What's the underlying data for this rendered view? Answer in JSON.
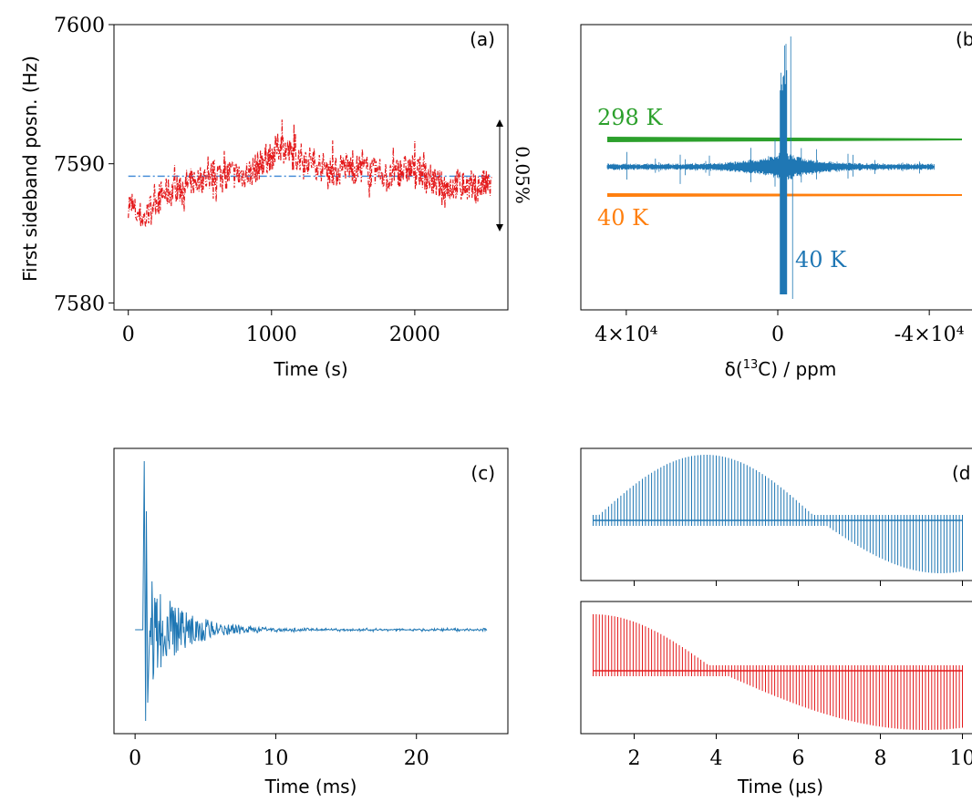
{
  "chart_data": [
    {
      "panel": "(a)",
      "type": "line",
      "ylabel": "First sideband posn. (Hz)",
      "xlabel": "Time (s)",
      "xlim": [
        -100,
        2650
      ],
      "ylim": [
        7579.5,
        7600
      ],
      "x_ticks": [
        0,
        1000,
        2000
      ],
      "y_ticks": [
        7580,
        7590,
        7600
      ],
      "series": [
        {
          "color": "#e41a1c",
          "style": "dash-dot",
          "points": [
            [
              0,
              7587.2
            ],
            [
              60,
              7586.4
            ],
            [
              120,
              7586.0
            ],
            [
              180,
              7587.3
            ],
            [
              240,
              7587.8
            ],
            [
              300,
              7588.0
            ],
            [
              360,
              7588.3
            ],
            [
              420,
              7588.6
            ],
            [
              480,
              7588.8
            ],
            [
              540,
              7589.0
            ],
            [
              600,
              7589.2
            ],
            [
              660,
              7589.3
            ],
            [
              720,
              7589.3
            ],
            [
              780,
              7589.2
            ],
            [
              840,
              7589.3
            ],
            [
              900,
              7589.8
            ],
            [
              950,
              7590.3
            ],
            [
              1000,
              7590.6
            ],
            [
              1060,
              7591.3
            ],
            [
              1100,
              7591.0
            ],
            [
              1160,
              7590.5
            ],
            [
              1220,
              7590.4
            ],
            [
              1280,
              7590.2
            ],
            [
              1340,
              7589.8
            ],
            [
              1400,
              7589.6
            ],
            [
              1460,
              7589.4
            ],
            [
              1520,
              7589.8
            ],
            [
              1580,
              7589.6
            ],
            [
              1640,
              7589.7
            ],
            [
              1700,
              7589.3
            ],
            [
              1760,
              7589.5
            ],
            [
              1820,
              7588.8
            ],
            [
              1880,
              7589.4
            ],
            [
              1940,
              7589.6
            ],
            [
              2000,
              7589.6
            ],
            [
              2060,
              7589.3
            ],
            [
              2120,
              7588.8
            ],
            [
              2180,
              7588.4
            ],
            [
              2240,
              7588.3
            ],
            [
              2300,
              7588.6
            ],
            [
              2360,
              7588.4
            ],
            [
              2420,
              7588.2
            ],
            [
              2480,
              7588.5
            ],
            [
              2540,
              7588.4
            ]
          ]
        },
        {
          "color": "#4a90d9",
          "style": "dash-dot",
          "points": [
            [
              0,
              7589.1
            ],
            [
              2540,
              7589.1
            ]
          ]
        }
      ],
      "annotation": {
        "text": "0.05%",
        "y_range": [
          7585.3,
          7593
        ]
      }
    },
    {
      "panel": "(b)",
      "type": "line",
      "xlabel_prefix": "δ(",
      "xlabel_sup": "13",
      "xlabel_suffix": "C) / ppm",
      "x_tick_labels": [
        "4×10⁴",
        "0",
        "-4×10⁴"
      ],
      "x_ticks": [
        40000,
        0,
        -40000
      ],
      "xlim": [
        52000,
        -52000
      ],
      "series": [
        {
          "name": "298 K",
          "color": "#2ca02c",
          "kind": "flat-band",
          "offset": 1
        },
        {
          "name": "",
          "color": "#1f77b4",
          "kind": "spectrum",
          "offset": 0
        },
        {
          "name": "40 K",
          "color": "#ff7f0e",
          "kind": "flat-band",
          "offset": -1
        }
      ],
      "annotations": [
        {
          "text": "298 K",
          "color": "#2ca02c"
        },
        {
          "text": "40 K",
          "color": "#ff7f0e"
        },
        {
          "text": "40 K",
          "color": "#1f77b4"
        }
      ]
    },
    {
      "panel": "(c)",
      "type": "line",
      "xlabel": "Time (ms)",
      "xlim": [
        -1.5,
        26.5
      ],
      "x_ticks": [
        0,
        10,
        20
      ],
      "series": [
        {
          "color": "#1f77b4",
          "kind": "decay",
          "x_end": 25
        }
      ]
    },
    {
      "panel": "(d)",
      "type": "line",
      "xlabel_prefix": "Time (",
      "xlabel_unit": "μs",
      "xlabel_suffix": ")",
      "xlim": [
        0.7,
        10.3
      ],
      "x_ticks": [
        2,
        4,
        6,
        8,
        10
      ],
      "series": [
        {
          "color": "#1f77b4",
          "kind": "modulated-pulses",
          "zero_crossing": 6.5
        },
        {
          "color": "#e41a1c",
          "kind": "modulated-pulses",
          "zero_crossing": 4.0
        }
      ]
    }
  ]
}
